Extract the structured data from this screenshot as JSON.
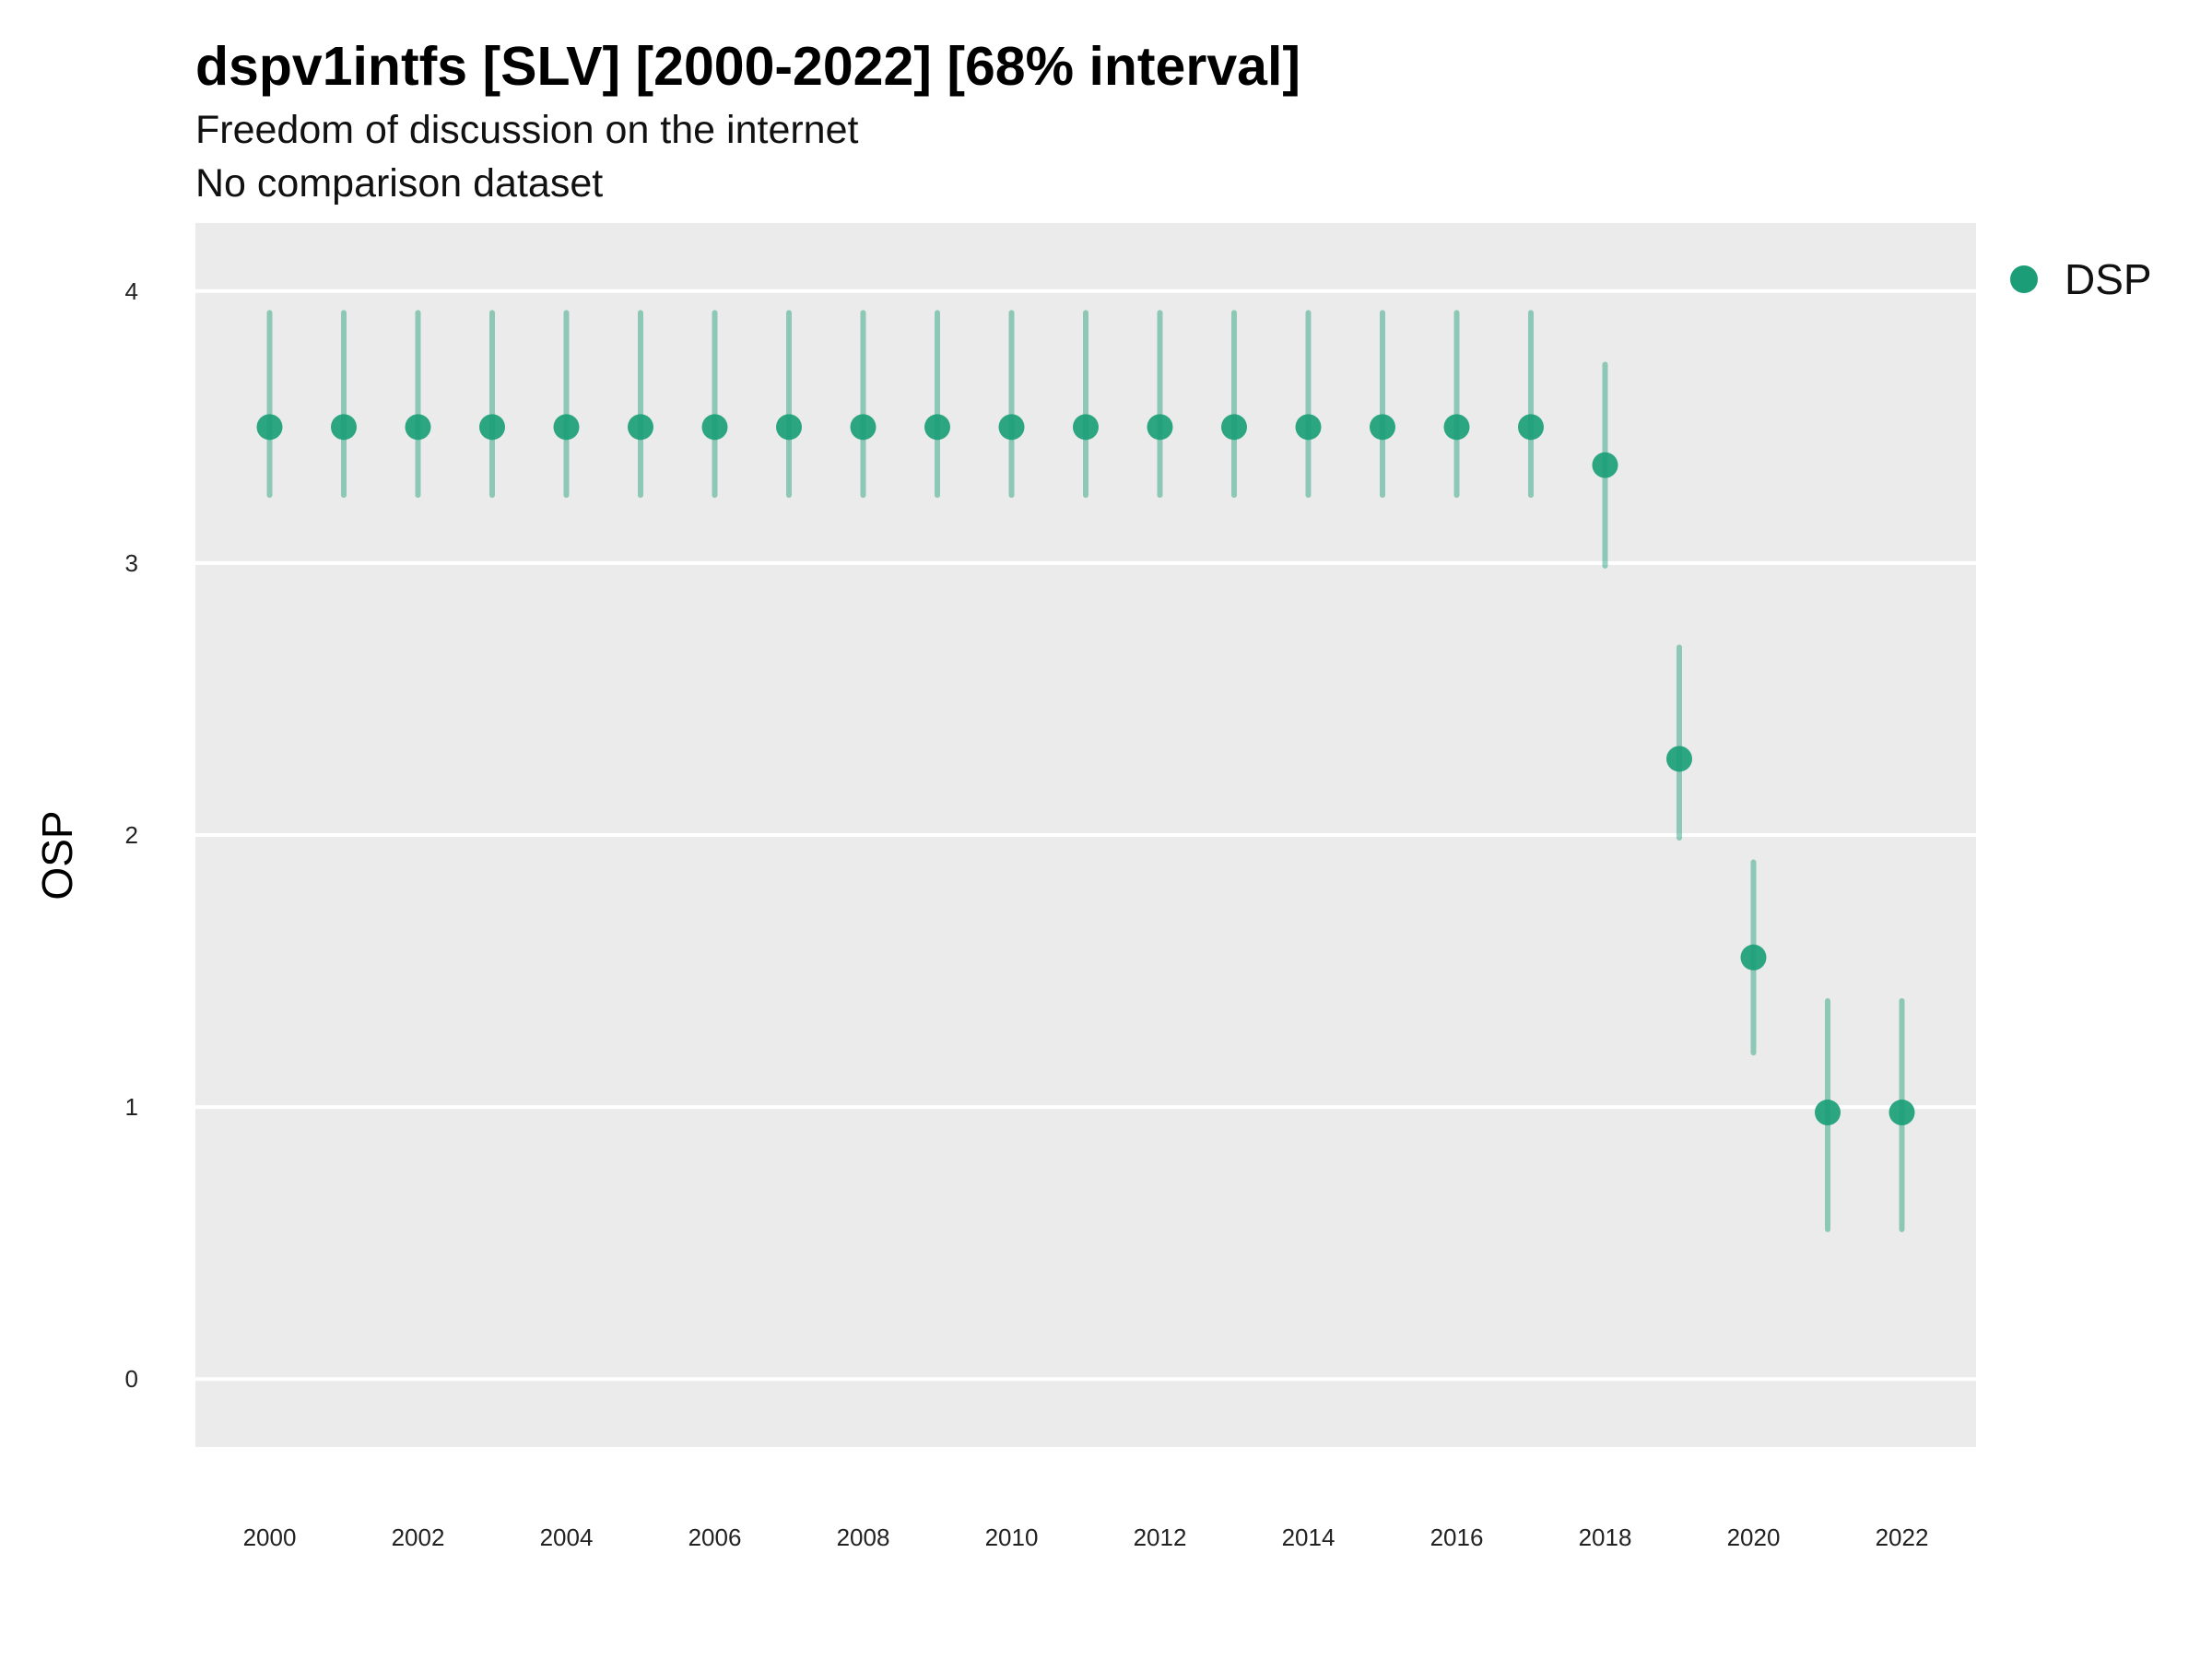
{
  "chart_data": {
    "type": "scatter",
    "title": "dspv1intfs [SLV] [2000-2022] [68% interval]",
    "subtitle": "Freedom of discussion on the internet",
    "subtitle2": "No comparison dataset",
    "xlabel": "",
    "ylabel": "OSP",
    "xlim": [
      1999,
      2023
    ],
    "ylim": [
      -0.25,
      4.25
    ],
    "x_ticks": [
      "2000",
      "2002",
      "2004",
      "2006",
      "2008",
      "2010",
      "2012",
      "2014",
      "2016",
      "2018",
      "2020",
      "2022"
    ],
    "y_ticks": [
      "0",
      "1",
      "2",
      "3",
      "4"
    ],
    "grid": true,
    "legend_position": "right",
    "series": [
      {
        "name": "DSP",
        "color": "#1b9e77",
        "x": [
          2000,
          2001,
          2002,
          2003,
          2004,
          2005,
          2006,
          2007,
          2008,
          2009,
          2010,
          2011,
          2012,
          2013,
          2014,
          2015,
          2016,
          2017,
          2018,
          2019,
          2020,
          2021,
          2022
        ],
        "y": [
          3.5,
          3.5,
          3.5,
          3.5,
          3.5,
          3.5,
          3.5,
          3.5,
          3.5,
          3.5,
          3.5,
          3.5,
          3.5,
          3.5,
          3.5,
          3.5,
          3.5,
          3.5,
          3.36,
          2.28,
          1.55,
          0.98,
          0.98
        ],
        "lower": [
          3.25,
          3.25,
          3.25,
          3.25,
          3.25,
          3.25,
          3.25,
          3.25,
          3.25,
          3.25,
          3.25,
          3.25,
          3.25,
          3.25,
          3.25,
          3.25,
          3.25,
          3.25,
          2.99,
          1.99,
          1.2,
          0.55,
          0.55
        ],
        "upper": [
          3.92,
          3.92,
          3.92,
          3.92,
          3.92,
          3.92,
          3.92,
          3.92,
          3.92,
          3.92,
          3.92,
          3.92,
          3.92,
          3.92,
          3.92,
          3.92,
          3.92,
          3.92,
          3.73,
          2.69,
          1.9,
          1.39,
          1.39
        ]
      }
    ]
  }
}
